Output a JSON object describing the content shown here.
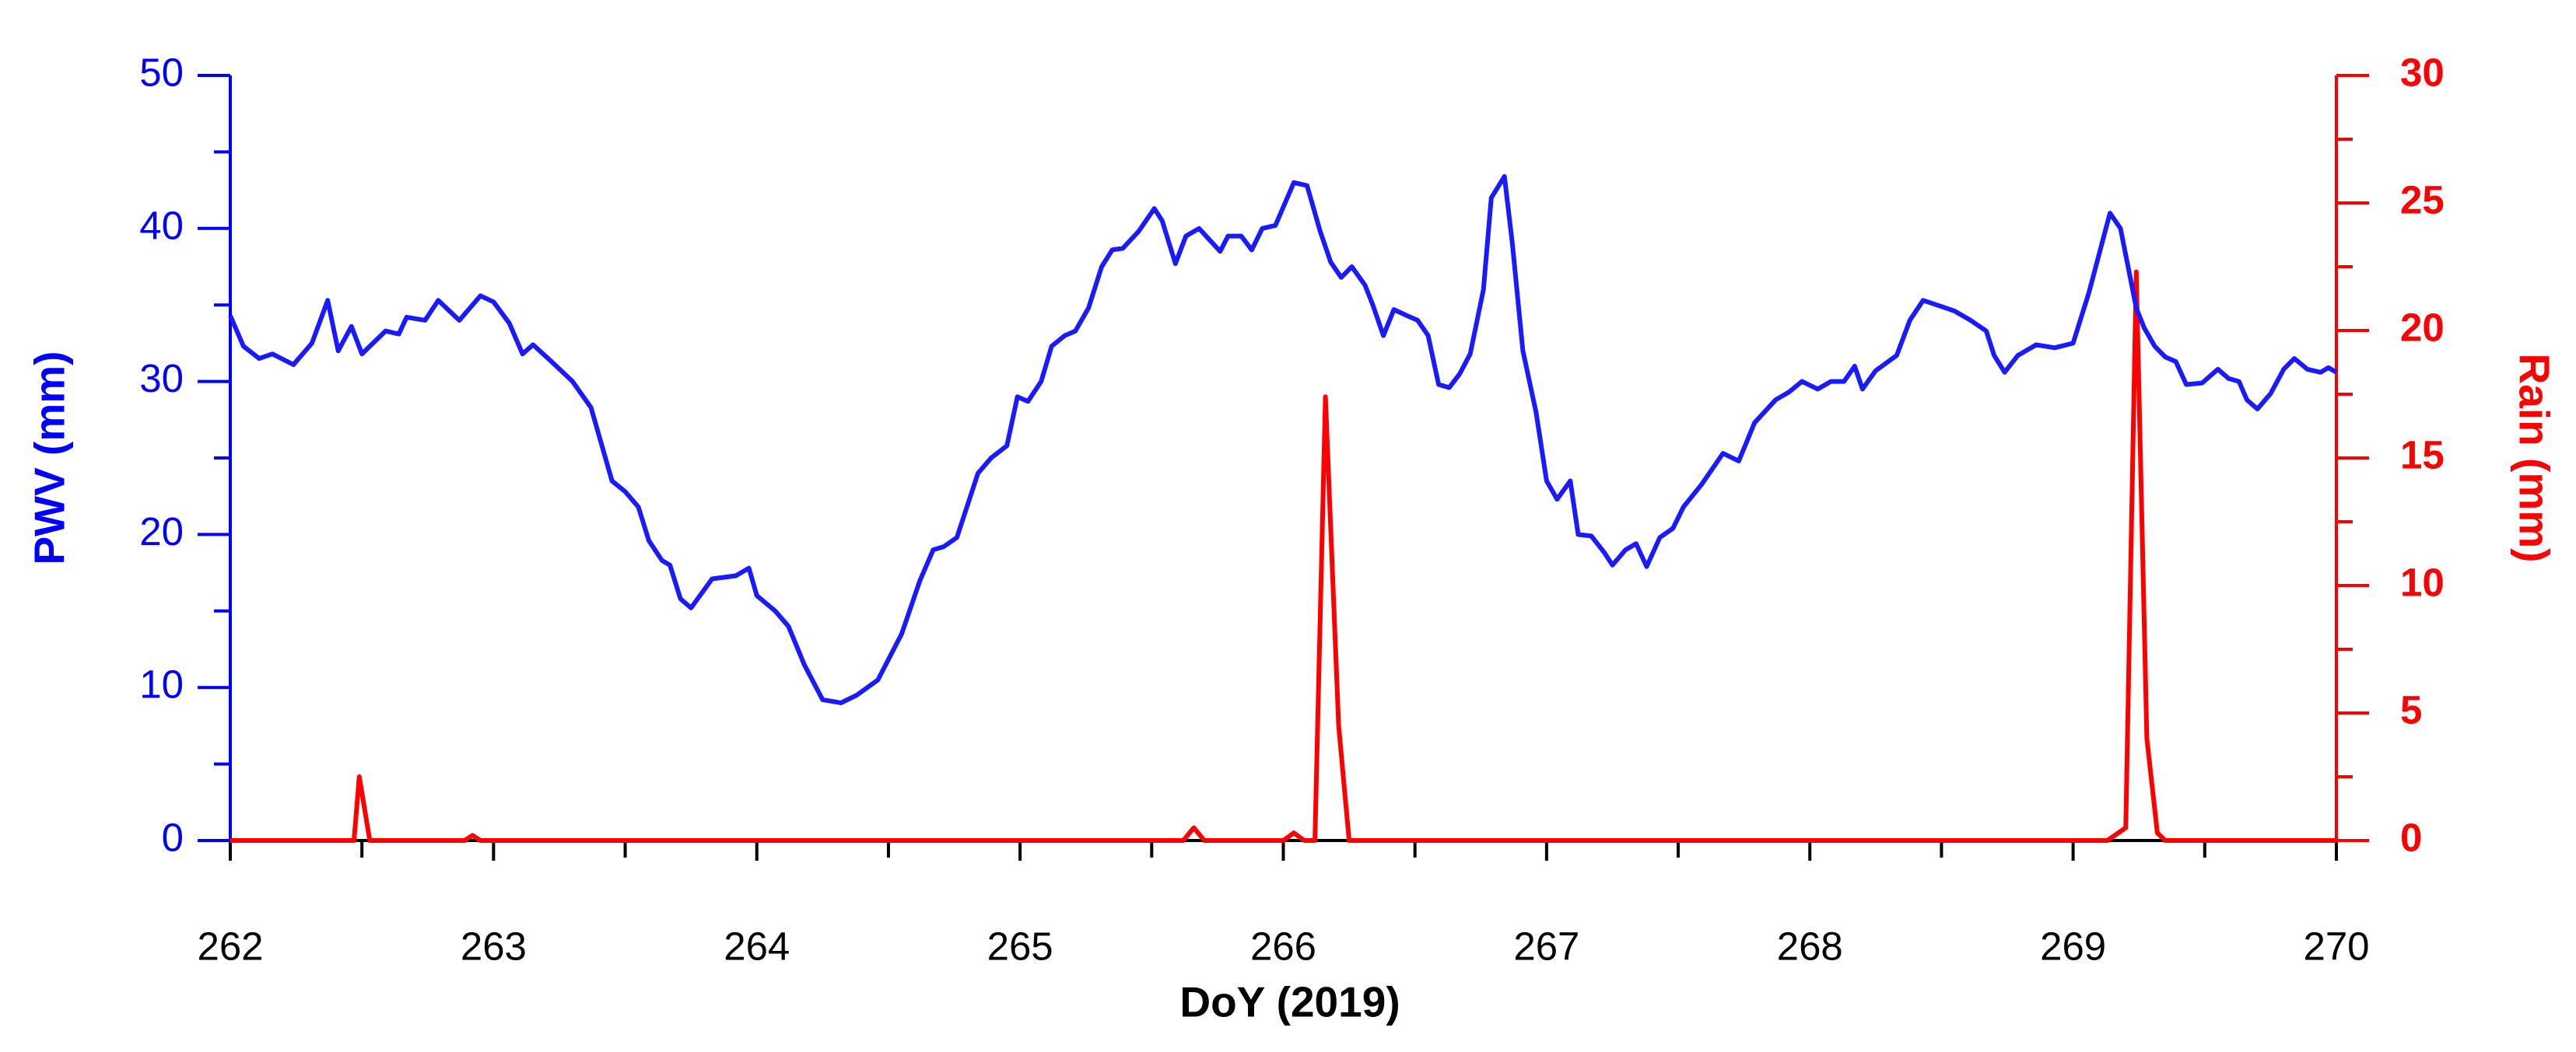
{
  "chart_data": {
    "type": "line",
    "x_label": "DoY (2019)",
    "y_label": "PWV (mm)",
    "y2_label": "Rain (mm)",
    "xlim": [
      262,
      270
    ],
    "xticks": [
      262,
      263,
      264,
      265,
      266,
      267,
      268,
      269,
      270
    ],
    "xminorticks": [
      262.5,
      263.5,
      264.5,
      265.5,
      266.5,
      267.5,
      268.5,
      269.5
    ],
    "ylim": [
      0,
      50
    ],
    "yticks": [
      0,
      10,
      20,
      30,
      40,
      50
    ],
    "yminorticks": [
      5,
      15,
      25,
      35,
      45
    ],
    "y2lim": [
      0,
      30
    ],
    "y2ticks": [
      0,
      5,
      10,
      15,
      20,
      25,
      30
    ],
    "y2minorticks": [
      2.5,
      7.5,
      12.5,
      17.5,
      22.5,
      27.5
    ],
    "y_color": "#0000ff",
    "y2_color": "#ff0000",
    "series": [
      {
        "name": "PWV",
        "color": "#1a1aff",
        "x": [
          262.0,
          262.05,
          262.11,
          262.16,
          262.24,
          262.31,
          262.37,
          262.41,
          262.46,
          262.5,
          262.59,
          262.64,
          262.67,
          262.74,
          262.79,
          262.87,
          262.95,
          263.0,
          263.06,
          263.11,
          263.15,
          263.22,
          263.3,
          263.37,
          263.45,
          263.5,
          263.55,
          263.59,
          263.64,
          263.67,
          263.71,
          263.75,
          263.83,
          263.92,
          263.97,
          264.0,
          264.07,
          264.12,
          264.18,
          264.25,
          264.32,
          264.38,
          264.46,
          264.55,
          264.62,
          264.67,
          264.71,
          264.76,
          264.84,
          264.89,
          264.95,
          264.99,
          265.03,
          265.08,
          265.12,
          265.17,
          265.21,
          265.26,
          265.31,
          265.35,
          265.39,
          265.45,
          265.51,
          265.54,
          265.59,
          265.63,
          265.68,
          265.76,
          265.79,
          265.84,
          265.88,
          265.92,
          265.97,
          266.04,
          266.09,
          266.14,
          266.18,
          266.22,
          266.26,
          266.31,
          266.34,
          266.38,
          266.42,
          266.47,
          266.51,
          266.55,
          266.59,
          266.63,
          266.67,
          266.71,
          266.76,
          266.79,
          266.84,
          266.87,
          266.91,
          266.96,
          267.0,
          267.04,
          267.09,
          267.12,
          267.17,
          267.22,
          267.25,
          267.3,
          267.34,
          267.38,
          267.43,
          267.48,
          267.52,
          267.59,
          267.67,
          267.73,
          267.79,
          267.87,
          267.92,
          267.97,
          268.03,
          268.08,
          268.13,
          268.17,
          268.2,
          268.25,
          268.33,
          268.38,
          268.43,
          268.5,
          268.55,
          268.61,
          268.67,
          268.7,
          268.74,
          268.79,
          268.86,
          268.93,
          269.0,
          269.06,
          269.14,
          269.18,
          269.24,
          269.27,
          269.31,
          269.35,
          269.39,
          269.43,
          269.49,
          269.55,
          269.59,
          269.63,
          269.66,
          269.7,
          269.75,
          269.8,
          269.84,
          269.89,
          269.94,
          269.97,
          270.0
        ],
        "values": [
          34.3,
          32.3,
          31.5,
          31.8,
          31.1,
          32.5,
          35.3,
          32.0,
          33.6,
          31.8,
          33.3,
          33.1,
          34.2,
          34.0,
          35.3,
          34.0,
          35.6,
          35.2,
          33.8,
          31.8,
          32.4,
          31.3,
          30.0,
          28.3,
          23.5,
          22.8,
          21.8,
          19.6,
          18.3,
          18.0,
          15.8,
          15.2,
          17.1,
          17.3,
          17.8,
          16.0,
          15.0,
          14.0,
          11.5,
          9.2,
          9.0,
          9.5,
          10.5,
          13.5,
          17.0,
          19.0,
          19.2,
          19.8,
          24.0,
          25.0,
          25.8,
          29.0,
          28.7,
          30.0,
          32.3,
          33.0,
          33.3,
          34.8,
          37.5,
          38.6,
          38.7,
          39.8,
          41.3,
          40.5,
          37.7,
          39.5,
          40.0,
          38.5,
          39.5,
          39.5,
          38.6,
          40.0,
          40.2,
          43.0,
          42.8,
          39.8,
          37.8,
          36.8,
          37.5,
          36.3,
          35.0,
          33.0,
          34.7,
          34.3,
          34.0,
          33.0,
          29.8,
          29.6,
          30.5,
          31.8,
          36.0,
          42.0,
          43.4,
          39.0,
          32.0,
          28.0,
          23.5,
          22.3,
          23.5,
          20.0,
          19.9,
          18.8,
          18.0,
          19.0,
          19.4,
          17.9,
          19.8,
          20.4,
          21.8,
          23.3,
          25.3,
          24.8,
          27.3,
          28.8,
          29.3,
          30.0,
          29.5,
          30.0,
          30.0,
          31.0,
          29.5,
          30.7,
          31.7,
          34.0,
          35.3,
          34.9,
          34.6,
          34.0,
          33.3,
          31.7,
          30.6,
          31.7,
          32.4,
          32.2,
          32.5,
          35.8,
          41.0,
          40.0,
          34.8,
          33.5,
          32.3,
          31.6,
          31.3,
          29.8,
          29.9,
          30.8,
          30.2,
          30.0,
          28.8,
          28.2,
          29.2,
          30.8,
          31.5,
          30.8,
          30.6,
          30.9,
          30.6
        ]
      },
      {
        "name": "Rain",
        "color": "#ff0000",
        "axis": "y2",
        "x": [
          262.0,
          262.47,
          262.49,
          262.53,
          262.89,
          262.92,
          262.95,
          265.62,
          265.66,
          265.7,
          266.0,
          266.04,
          266.08,
          266.12,
          266.16,
          266.21,
          266.25,
          269.13,
          269.2,
          269.24,
          269.28,
          269.32,
          269.35,
          270.0
        ],
        "values": [
          0,
          0,
          2.5,
          0,
          0,
          0.2,
          0,
          0,
          0.5,
          0,
          0,
          0.3,
          0,
          0,
          17.4,
          4.5,
          0,
          0,
          0.5,
          22.3,
          4.0,
          0.3,
          0,
          0
        ]
      }
    ]
  }
}
